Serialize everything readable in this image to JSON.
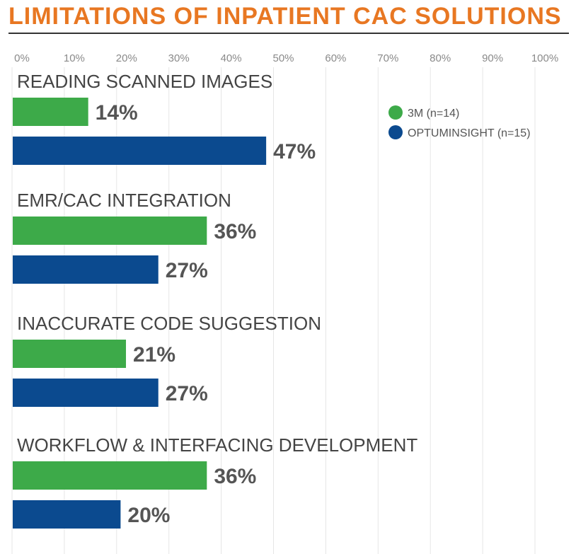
{
  "chart_data": {
    "type": "bar",
    "orientation": "horizontal",
    "title": "LIMITATIONS OF INPATIENT CAC SOLUTIONS",
    "xlim": [
      0,
      100
    ],
    "ticks": [
      "0%",
      "10%",
      "20%",
      "30%",
      "40%",
      "50%",
      "60%",
      "70%",
      "80%",
      "90%",
      "100%"
    ],
    "grid": true,
    "legend_position": "top-right",
    "categories": [
      "READING SCANNED IMAGES",
      "EMR/CAC INTEGRATION",
      "INACCURATE CODE SUGGESTION",
      "WORKFLOW & INTERFACING DEVELOPMENT"
    ],
    "series": [
      {
        "name": "3M (n=14)",
        "color": "#3DAA49",
        "values": [
          14,
          36,
          21,
          36
        ]
      },
      {
        "name": "OPTUMINSIGHT (n=15)",
        "color": "#0B4A8F",
        "values": [
          47,
          27,
          27,
          20
        ]
      }
    ]
  }
}
